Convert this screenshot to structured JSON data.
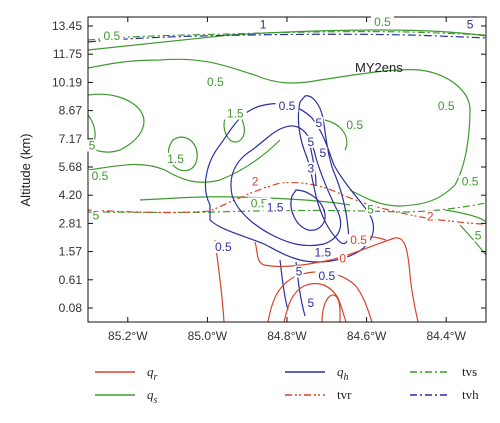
{
  "chart_data": {
    "type": "contour",
    "annotation": "MY2ens",
    "ylabel": "Altitude (km)",
    "xlabel": "",
    "x_ticks": [
      "85.2°W",
      "85.0°W",
      "84.8°W",
      "84.6°W",
      "84.4°W"
    ],
    "x_tick_values": [
      -85.2,
      -85.0,
      -84.8,
      -84.6,
      -84.4
    ],
    "xlim": [
      -85.3,
      -84.3
    ],
    "y_ticks": [
      "13.45",
      "11.75",
      "10.19",
      "8.67",
      "7.17",
      "5.68",
      "4.20",
      "2.81",
      "1.57",
      "0.61",
      "0.08"
    ],
    "grid": false,
    "legend_position": "bottom",
    "legend": [
      {
        "key": "qr",
        "label": "q",
        "sub": "r",
        "color": "#d9432b",
        "dash": "solid"
      },
      {
        "key": "qh",
        "label": "q",
        "sub": "h",
        "color": "#2b2fa0",
        "dash": "solid"
      },
      {
        "key": "tvs",
        "label": "tvs",
        "sub": "",
        "color": "#3f9a2f",
        "dash": "dashdot"
      },
      {
        "key": "qs",
        "label": "q",
        "sub": "s",
        "color": "#3f9a2f",
        "dash": "solid"
      },
      {
        "key": "tvr",
        "label": "tvr",
        "sub": "",
        "color": "#d9432b",
        "dash": "dashdotdot"
      },
      {
        "key": "tvh",
        "label": "tvh",
        "sub": "",
        "color": "#2b2fa0",
        "dash": "dashdot"
      }
    ],
    "contour_labels": [
      {
        "series": "qs",
        "text": "0.5",
        "x": -85.24,
        "y": 12.6
      },
      {
        "series": "qs",
        "text": "0.5",
        "x": -84.98,
        "y": 10.0
      },
      {
        "series": "qs",
        "text": "1.5",
        "x": -84.93,
        "y": 8.3
      },
      {
        "series": "qs",
        "text": "1.5",
        "x": -85.08,
        "y": 5.9
      },
      {
        "series": "qs",
        "text": "0.5",
        "x": -85.27,
        "y": 5.0
      },
      {
        "series": "qs",
        "text": "0.5",
        "x": -84.87,
        "y": 3.6
      },
      {
        "series": "qs",
        "text": "0.5",
        "x": -84.63,
        "y": 7.7
      },
      {
        "series": "qs",
        "text": "0.5",
        "x": -84.4,
        "y": 8.7
      },
      {
        "series": "qs",
        "text": "0.5",
        "x": -84.34,
        "y": 4.7
      },
      {
        "series": "qs",
        "text": "5",
        "x": -85.29,
        "y": 6.6
      },
      {
        "series": "qs",
        "text": "5",
        "x": -85.28,
        "y": 3.0
      },
      {
        "series": "qs",
        "text": "5",
        "x": -84.32,
        "y": 2.1
      },
      {
        "series": "tvs",
        "text": "0.5",
        "x": -84.56,
        "y": 13.45
      },
      {
        "series": "tvs",
        "text": "5",
        "x": -84.59,
        "y": 3.3
      },
      {
        "series": "qh",
        "text": "0.5",
        "x": -84.8,
        "y": 8.7
      },
      {
        "series": "qh",
        "text": "5",
        "x": -84.72,
        "y": 7.8
      },
      {
        "series": "qh",
        "text": "5",
        "x": -84.74,
        "y": 6.8
      },
      {
        "series": "qh",
        "text": "5",
        "x": -84.71,
        "y": 6.2
      },
      {
        "series": "qh",
        "text": "3",
        "x": -84.74,
        "y": 5.4
      },
      {
        "series": "qh",
        "text": "1.5",
        "x": -84.83,
        "y": 3.4
      },
      {
        "series": "qh",
        "text": "0.5",
        "x": -84.96,
        "y": 1.6
      },
      {
        "series": "qh",
        "text": "1.5",
        "x": -84.71,
        "y": 1.4
      },
      {
        "series": "qh",
        "text": "5",
        "x": -84.77,
        "y": 0.75
      },
      {
        "series": "qh",
        "text": "0.5",
        "x": -84.7,
        "y": 0.61
      },
      {
        "series": "qh",
        "text": "5",
        "x": -84.74,
        "y": 0.1
      },
      {
        "series": "tvh",
        "text": "1",
        "x": -84.86,
        "y": 13.3
      },
      {
        "series": "tvh",
        "text": "5",
        "x": -84.34,
        "y": 13.3
      },
      {
        "series": "tvr",
        "text": "2",
        "x": -84.88,
        "y": 4.7
      },
      {
        "series": "tvr",
        "text": "2",
        "x": -84.44,
        "y": 2.95
      },
      {
        "series": "qr",
        "text": "0.5",
        "x": -84.62,
        "y": 1.9
      },
      {
        "series": "qr",
        "text": "0",
        "x": -84.66,
        "y": 1.2
      }
    ]
  }
}
